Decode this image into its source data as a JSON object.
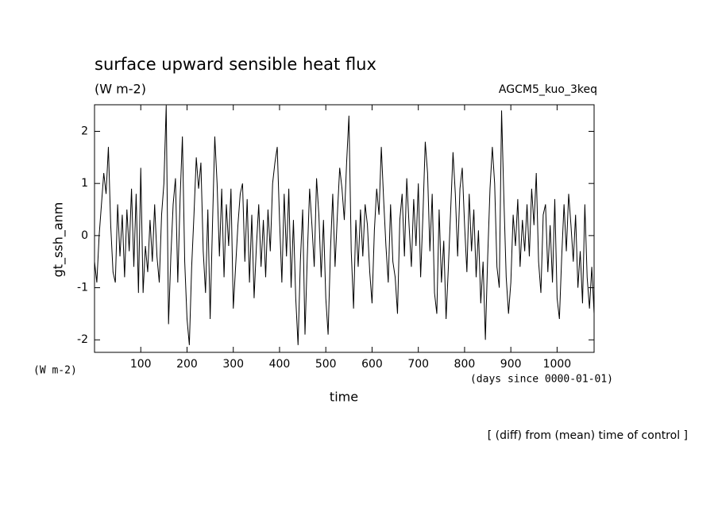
{
  "chart_data": {
    "type": "line",
    "title": "surface upward sensible heat flux",
    "subtitle": "(W m-2)",
    "model_label": "AGCM5_kuo_3keq",
    "y_label": "gt_ssh_anm",
    "y_units": "(W m-2)",
    "x_label": "time",
    "x_units": "(days since 0000-01-01)",
    "footnote": "[ (diff) from (mean) time of control ]",
    "xlim": [
      0,
      1080
    ],
    "xticks": [
      100,
      200,
      300,
      400,
      500,
      600,
      700,
      800,
      900,
      1000
    ],
    "ylim": [
      -2.24,
      2.51
    ],
    "yticks": [
      -2,
      -1,
      0,
      1,
      2
    ],
    "grid": false,
    "x": [
      0,
      5,
      10,
      15,
      20,
      25,
      30,
      35,
      40,
      45,
      50,
      55,
      60,
      65,
      70,
      75,
      80,
      85,
      90,
      95,
      100,
      105,
      110,
      115,
      120,
      125,
      130,
      135,
      140,
      145,
      150,
      155,
      160,
      165,
      170,
      175,
      180,
      185,
      190,
      195,
      200,
      205,
      210,
      215,
      220,
      225,
      230,
      235,
      240,
      245,
      250,
      255,
      260,
      265,
      270,
      275,
      280,
      285,
      290,
      295,
      300,
      305,
      310,
      315,
      320,
      325,
      330,
      335,
      340,
      345,
      350,
      355,
      360,
      365,
      370,
      375,
      380,
      385,
      390,
      395,
      400,
      405,
      410,
      415,
      420,
      425,
      430,
      435,
      440,
      445,
      450,
      455,
      460,
      465,
      470,
      475,
      480,
      485,
      490,
      495,
      500,
      505,
      510,
      515,
      520,
      525,
      530,
      535,
      540,
      545,
      550,
      555,
      560,
      565,
      570,
      575,
      580,
      585,
      590,
      595,
      600,
      605,
      610,
      615,
      620,
      625,
      630,
      635,
      640,
      645,
      650,
      655,
      660,
      665,
      670,
      675,
      680,
      685,
      690,
      695,
      700,
      705,
      710,
      715,
      720,
      725,
      730,
      735,
      740,
      745,
      750,
      755,
      760,
      765,
      770,
      775,
      780,
      785,
      790,
      795,
      800,
      805,
      810,
      815,
      820,
      825,
      830,
      835,
      840,
      845,
      850,
      855,
      860,
      865,
      870,
      875,
      880,
      885,
      890,
      895,
      900,
      905,
      910,
      915,
      920,
      925,
      930,
      935,
      940,
      945,
      950,
      955,
      960,
      965,
      970,
      975,
      980,
      985,
      990,
      995,
      1000,
      1005,
      1010,
      1015,
      1020,
      1025,
      1030,
      1035,
      1040,
      1045,
      1050,
      1055,
      1060,
      1065,
      1070,
      1075,
      1080
    ],
    "series": [
      {
        "color": "#000000",
        "values": [
          -0.5,
          -0.9,
          0.0,
          0.6,
          1.2,
          0.8,
          1.7,
          0.2,
          -0.7,
          -0.9,
          0.6,
          -0.4,
          0.4,
          -0.8,
          0.5,
          -0.3,
          0.9,
          -0.6,
          0.8,
          -1.1,
          1.3,
          -1.1,
          -0.2,
          -0.7,
          0.3,
          -0.5,
          0.6,
          -0.4,
          -0.9,
          0.4,
          1.0,
          2.5,
          -1.7,
          -0.4,
          0.6,
          1.1,
          -0.9,
          0.7,
          1.9,
          -0.5,
          -1.6,
          -2.1,
          -0.6,
          0.4,
          1.5,
          0.9,
          1.4,
          -0.3,
          -1.1,
          0.5,
          -1.6,
          0.2,
          1.9,
          1.0,
          -0.4,
          0.9,
          -0.8,
          0.6,
          -0.2,
          0.9,
          -1.4,
          -0.6,
          0.2,
          0.8,
          1.0,
          -0.5,
          0.7,
          -0.9,
          0.4,
          -1.2,
          -0.2,
          0.6,
          -0.6,
          0.3,
          -0.8,
          0.5,
          -0.3,
          1.0,
          1.4,
          1.7,
          0.3,
          -0.9,
          0.8,
          -0.4,
          0.9,
          -1.0,
          0.3,
          -1.2,
          -2.1,
          -0.5,
          0.5,
          -1.9,
          -0.4,
          0.9,
          0.2,
          -0.6,
          1.1,
          0.4,
          -0.8,
          0.3,
          -1.2,
          -1.9,
          -0.3,
          0.8,
          -0.6,
          0.4,
          1.3,
          0.9,
          0.3,
          1.4,
          2.3,
          -0.3,
          -1.4,
          0.3,
          -0.6,
          0.5,
          -0.4,
          0.6,
          0.2,
          -0.7,
          -1.3,
          0.1,
          0.9,
          0.4,
          1.7,
          0.7,
          -0.2,
          -0.9,
          0.6,
          -0.5,
          -0.8,
          -1.5,
          0.3,
          0.8,
          -0.4,
          1.1,
          0.2,
          -0.6,
          0.7,
          -0.2,
          1.0,
          -0.8,
          0.4,
          1.8,
          1.2,
          -0.3,
          0.8,
          -1.1,
          -1.5,
          0.5,
          -0.9,
          -0.1,
          -1.6,
          -0.6,
          0.5,
          1.6,
          0.8,
          -0.4,
          0.9,
          1.3,
          0.2,
          -0.7,
          0.8,
          -0.3,
          0.5,
          -0.8,
          0.1,
          -1.3,
          -0.5,
          -2.0,
          -0.4,
          0.9,
          1.7,
          1.0,
          -0.6,
          -1.0,
          2.4,
          0.7,
          -0.8,
          -1.5,
          -0.9,
          0.4,
          -0.2,
          0.7,
          -0.6,
          0.3,
          -0.3,
          0.6,
          -0.4,
          0.9,
          0.2,
          1.2,
          -0.5,
          -1.1,
          0.4,
          0.6,
          -0.7,
          0.2,
          -0.9,
          0.7,
          -1.2,
          -1.6,
          -0.4,
          0.6,
          -0.3,
          0.8,
          0.2,
          -0.5,
          0.4,
          -1.0,
          -0.3,
          -1.3,
          0.6,
          -0.8,
          -1.4,
          -0.6,
          -1.5
        ]
      }
    ]
  }
}
